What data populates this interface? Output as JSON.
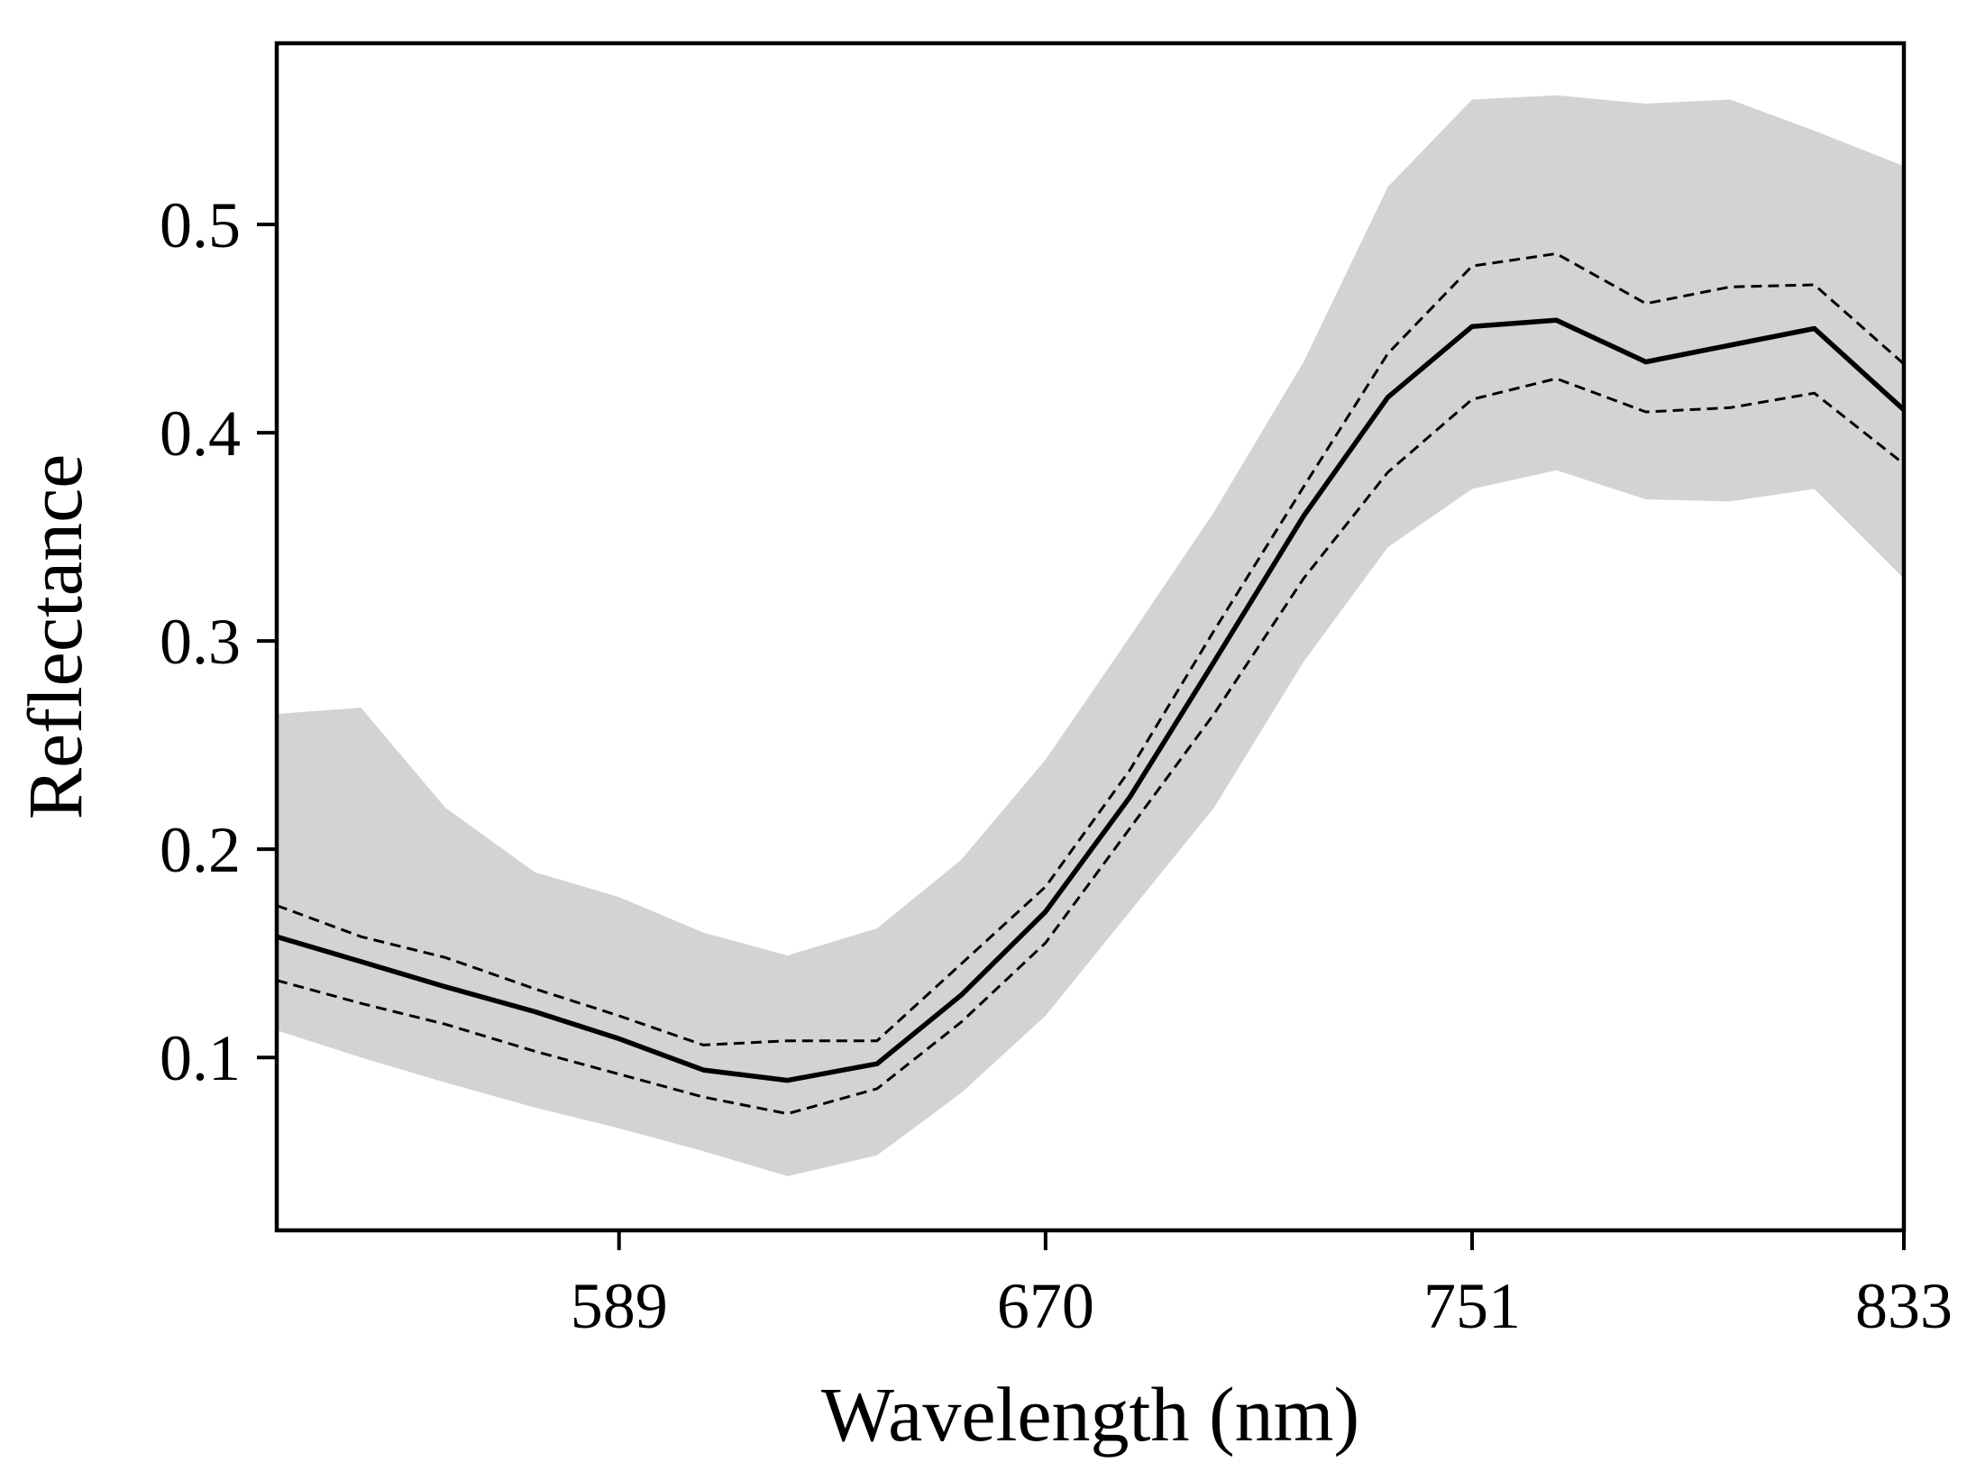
{
  "chart_data": {
    "type": "line",
    "title": "",
    "xlabel": "Wavelength (nm)",
    "ylabel": "Reflectance",
    "xlim": [
      524,
      833
    ],
    "ylim": [
      0.017,
      0.587
    ],
    "xticks": [
      589,
      670,
      751,
      833
    ],
    "xtick_labels": [
      "589",
      "670",
      "751",
      "833"
    ],
    "yticks": [
      0.1,
      0.2,
      0.3,
      0.4,
      0.5
    ],
    "ytick_labels": [
      "0.1",
      "0.2",
      "0.3",
      "0.4",
      "0.5"
    ],
    "grid": false,
    "x": [
      524,
      540,
      556,
      573,
      589,
      605,
      621,
      638,
      654,
      670,
      686,
      702,
      719,
      735,
      751,
      767,
      784,
      800,
      816,
      833
    ],
    "series": [
      {
        "role": "mean",
        "style": "solid",
        "values": [
          0.158,
          0.146,
          0.134,
          0.122,
          0.109,
          0.094,
          0.089,
          0.097,
          0.13,
          0.17,
          0.225,
          0.29,
          0.36,
          0.417,
          0.451,
          0.454,
          0.434,
          0.442,
          0.45,
          0.411
        ]
      },
      {
        "role": "upper",
        "style": "dashed",
        "values": [
          0.173,
          0.158,
          0.148,
          0.133,
          0.12,
          0.106,
          0.108,
          0.108,
          0.145,
          0.182,
          0.238,
          0.305,
          0.374,
          0.438,
          0.48,
          0.486,
          0.462,
          0.47,
          0.471,
          0.433
        ]
      },
      {
        "role": "lower",
        "style": "dashed",
        "values": [
          0.137,
          0.126,
          0.116,
          0.103,
          0.092,
          0.081,
          0.073,
          0.085,
          0.117,
          0.155,
          0.21,
          0.265,
          0.33,
          0.381,
          0.416,
          0.426,
          0.41,
          0.412,
          0.419,
          0.385
        ]
      },
      {
        "role": "band-upper",
        "style": "fill",
        "values": [
          0.265,
          0.268,
          0.22,
          0.189,
          0.177,
          0.16,
          0.149,
          0.162,
          0.195,
          0.243,
          0.302,
          0.362,
          0.434,
          0.518,
          0.56,
          0.562,
          0.558,
          0.56,
          0.545,
          0.528
        ]
      },
      {
        "role": "band-lower",
        "style": "fill",
        "values": [
          0.113,
          0.1,
          0.088,
          0.076,
          0.066,
          0.055,
          0.043,
          0.053,
          0.083,
          0.12,
          0.17,
          0.22,
          0.29,
          0.345,
          0.373,
          0.382,
          0.368,
          0.367,
          0.373,
          0.33
        ]
      }
    ],
    "colors": {
      "band": "#d3d3d3",
      "line": "#000000",
      "axis": "#000000"
    }
  }
}
